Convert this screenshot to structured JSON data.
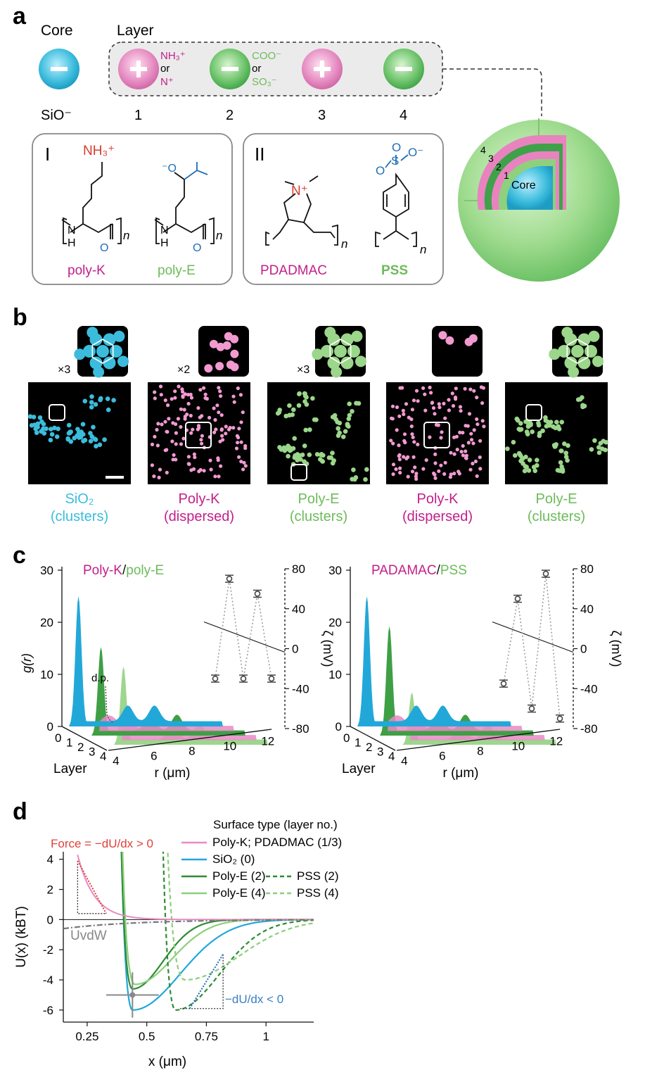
{
  "panel_labels": {
    "a": "a",
    "b": "b",
    "c": "c",
    "d": "d"
  },
  "colors": {
    "silica": "#3cbcdc",
    "polyk": "#e07ab8",
    "polyk_text": "#c21f8a",
    "polye": "#9bd68a",
    "polye_dark": "#3f9f45",
    "pss_text": "#6dbb5a",
    "amine_red": "#d83a2a",
    "acid_blue": "#1f6fb5",
    "grey": "#555555"
  },
  "panel_a": {
    "core_label": "Core",
    "layer_label": "Layer",
    "core_sublabel": "SiO⁻",
    "layer_numbers": [
      "1",
      "2",
      "3",
      "4"
    ],
    "pos1": "NH₃⁺",
    "pos_or": "or",
    "pos2": "N⁺",
    "neg1": "COO⁻",
    "neg_or": "or",
    "neg2": "SO₃⁻",
    "box1_label": "I",
    "box2_label": "II",
    "struct1_label": "NH₃⁺",
    "struct_n": "n",
    "struct_H": "H",
    "struct_N": "N",
    "struct_O": "O",
    "struct_Nplus": "N⁺",
    "carboxyl_label": "⁻O",
    "sulfonate_label": "O⁻",
    "sulfonate_S": "S",
    "sulfonate_O": "O",
    "names": [
      "poly-K",
      "poly-E",
      "PDADMAC",
      "PSS"
    ],
    "sphere_core": "Core",
    "sphere_layers": [
      "4",
      "3",
      "2",
      "1"
    ]
  },
  "panel_b": {
    "zoom_marks": [
      "×3",
      "×2",
      "×3",
      "",
      ""
    ],
    "captions": [
      [
        "SiO₂",
        "(clusters)"
      ],
      [
        "Poly-K",
        "(dispersed)"
      ],
      [
        "Poly-E",
        "(clusters)"
      ],
      [
        "Poly-K",
        "(dispersed)"
      ],
      [
        "Poly-E",
        "(clusters)"
      ]
    ]
  },
  "chart_data": [
    {
      "type": "line",
      "title_parts": [
        "Poly-K",
        "/",
        "poly-E"
      ],
      "ylabel": "g(r)",
      "y2label": "ζ (mV)",
      "xlabel": "r (μm)",
      "layer_axis_label": "Layer",
      "x_ticks": [
        "4",
        "6",
        "8",
        "10",
        "12"
      ],
      "y_ticks": [
        "0",
        "10",
        "20",
        "30"
      ],
      "y2_ticks": [
        "80",
        "40",
        "0",
        "-40",
        "-80"
      ],
      "layer_ticks": [
        "0",
        "1",
        "2",
        "3",
        "4"
      ],
      "annotation": "d.p.",
      "zeta": {
        "layers": [
          0,
          1,
          2,
          3,
          4
        ],
        "values": [
          -30,
          70,
          -30,
          55,
          -30
        ]
      },
      "series": [
        {
          "layer": 0,
          "first_peak_r": 4.4,
          "first_peak_g": 25
        },
        {
          "layer": 1,
          "first_peak_r": 5.4,
          "first_peak_g": 3
        },
        {
          "layer": 2,
          "first_peak_r": 4.4,
          "first_peak_g": 17
        },
        {
          "layer": 3,
          "first_peak_r": 5.4,
          "first_peak_g": 3
        },
        {
          "layer": 4,
          "first_peak_r": 4.4,
          "first_peak_g": 15
        }
      ]
    },
    {
      "type": "line",
      "title_parts": [
        "PADAMAC",
        "/",
        "PSS"
      ],
      "ylabel": "",
      "y2label": "ζ (mV)",
      "xlabel": "r (μm)",
      "layer_axis_label": "Layer",
      "x_ticks": [
        "4",
        "6",
        "8",
        "10",
        "12"
      ],
      "y_ticks": [
        "0",
        "10",
        "20",
        "30"
      ],
      "y2_ticks": [
        "80",
        "40",
        "0",
        "-40",
        "-80"
      ],
      "layer_ticks": [
        "0",
        "1",
        "2",
        "3",
        "4"
      ],
      "zeta": {
        "layers": [
          0,
          1,
          2,
          3,
          4
        ],
        "values": [
          -35,
          50,
          -60,
          75,
          -70
        ]
      },
      "series": [
        {
          "layer": 0,
          "first_peak_r": 4.4,
          "first_peak_g": 25
        },
        {
          "layer": 1,
          "first_peak_r": 5.4,
          "first_peak_g": 3
        },
        {
          "layer": 2,
          "first_peak_r": 4.4,
          "first_peak_g": 21
        },
        {
          "layer": 3,
          "first_peak_r": 5.4,
          "first_peak_g": 3
        },
        {
          "layer": 4,
          "first_peak_r": 4.4,
          "first_peak_g": 10
        }
      ]
    },
    {
      "type": "line",
      "xlabel": "x (μm)",
      "ylabel": "U(x) (kBT)",
      "x_ticks": [
        "0.25",
        "0.5",
        "0.75",
        "1"
      ],
      "y_ticks": [
        "4",
        "2",
        "0",
        "-2",
        "-4",
        "-6"
      ],
      "xlim": [
        0.15,
        1.2
      ],
      "ylim": [
        -6.8,
        4.5
      ],
      "legend_title": "Surface type (layer no.)",
      "legend": [
        {
          "name": "Poly-K; PDADMAC (1/3)",
          "color": "#e88ac4",
          "dash": ""
        },
        {
          "name": "SiO₂ (0)",
          "color": "#22a8d8",
          "dash": ""
        },
        {
          "name": "Poly-E (2)",
          "color": "#2e8b35",
          "dash": ""
        },
        {
          "name": "PSS (2)",
          "color": "#2e8b35",
          "dash": "6,4"
        },
        {
          "name": "Poly-E (4)",
          "color": "#8ccf7a",
          "dash": ""
        },
        {
          "name": "PSS (4)",
          "color": "#8ccf7a",
          "dash": "6,4"
        }
      ],
      "annotations": {
        "force_pos": "Force = −dU/dx > 0",
        "force_neg": "−dU/dx < 0",
        "vdw": "UvdW"
      },
      "minima": [
        {
          "name": "SiO₂ (0)",
          "x": 0.44,
          "y": -6.0
        },
        {
          "name": "Poly-E (2)",
          "x": 0.44,
          "y": -4.6
        },
        {
          "name": "Poly-E (4)",
          "x": 0.45,
          "y": -4.3
        },
        {
          "name": "PSS (2)",
          "x": 0.62,
          "y": -6.0
        },
        {
          "name": "PSS (4)",
          "x": 0.66,
          "y": -4.0
        }
      ],
      "errorbar_point": {
        "x": 0.44,
        "y": -5.0
      }
    }
  ]
}
